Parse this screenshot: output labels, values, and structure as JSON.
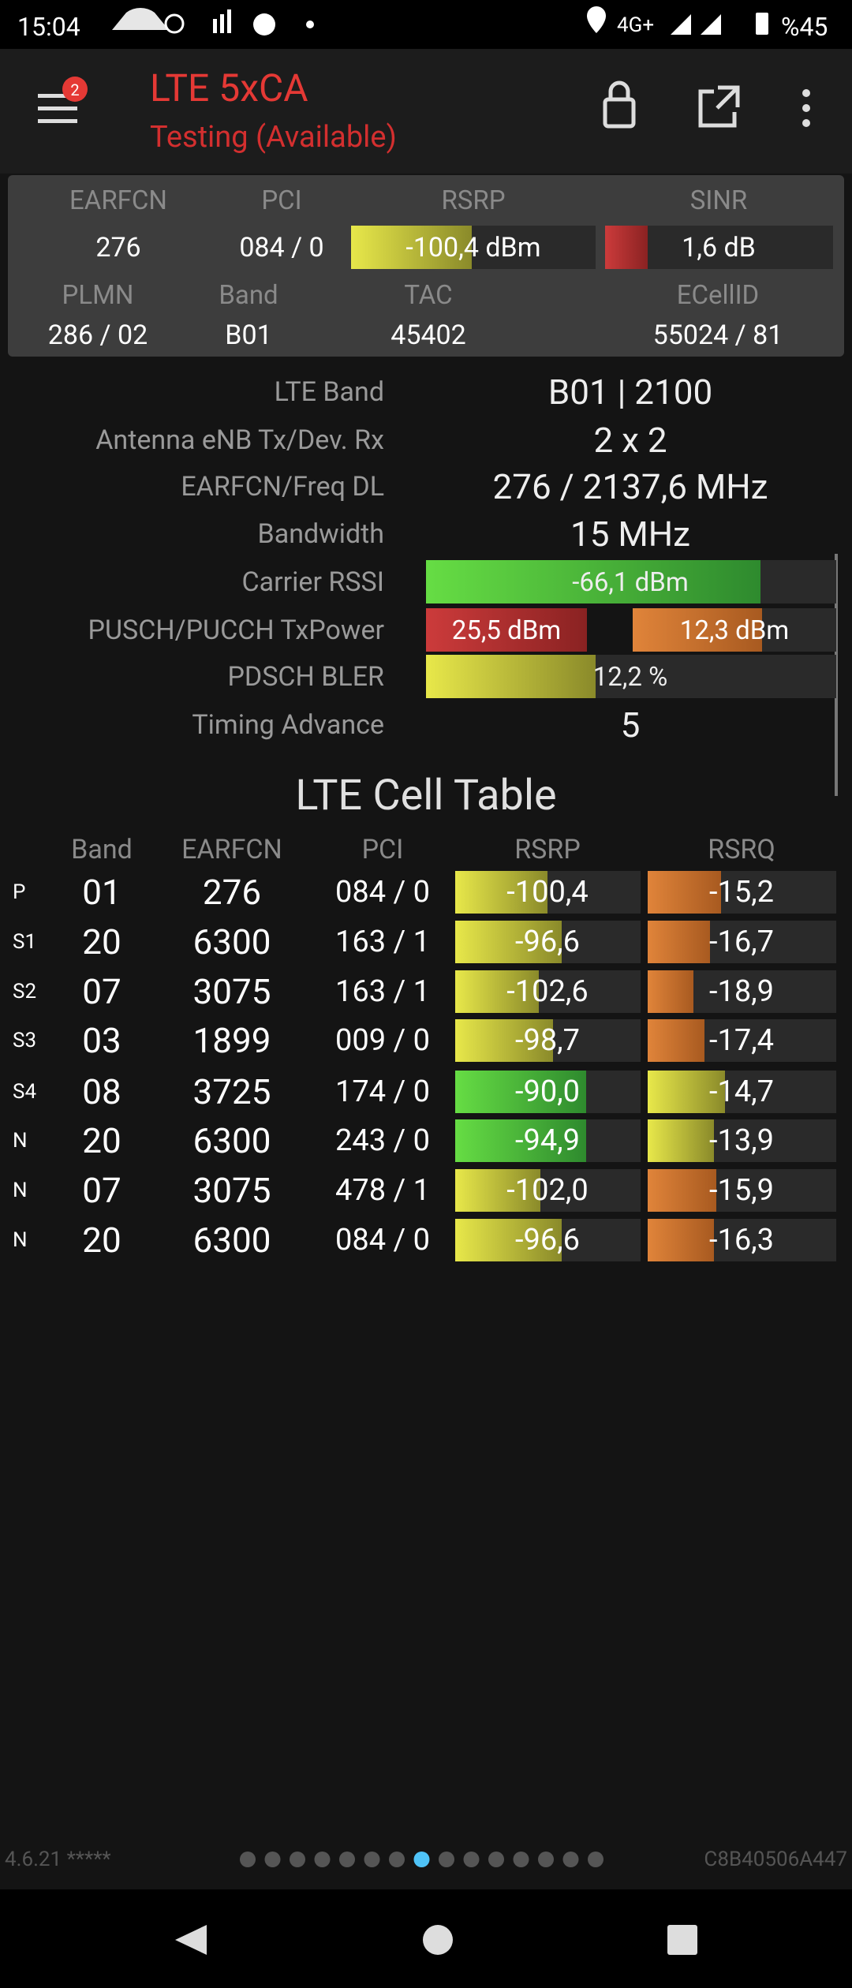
{
  "status_bar": {
    "time": "15:04",
    "network": "4G+",
    "battery": "%45"
  },
  "app_bar": {
    "title": "LTE 5xCA",
    "subtitle": "Testing (Available)",
    "badge": "2"
  },
  "summary": {
    "headers": [
      "EARFCN",
      "PCI",
      "RSRP",
      "SINR"
    ],
    "values": [
      "276",
      "084 / 0",
      "-100,4 dBm",
      "1,6 dB"
    ],
    "headers2": [
      "PLMN",
      "Band",
      "TAC",
      "ECellID"
    ],
    "values2": [
      "286 / 02",
      "B01",
      "45402",
      "55024 / 81"
    ]
  },
  "details": [
    {
      "label": "LTE Band",
      "values": [
        "B01 | 2100"
      ]
    },
    {
      "label": "Antenna eNB Tx/Dev. Rx",
      "values": [
        "2 x 2"
      ]
    },
    {
      "label": "EARFCN/Freq DL",
      "values": [
        "276 / 2137,6 MHz"
      ]
    },
    {
      "label": "Bandwidth",
      "values": [
        "15 MHz"
      ]
    },
    {
      "label": "Carrier RSSI",
      "values": [
        "-66,1 dBm"
      ]
    },
    {
      "label": "PUSCH/PUCCH TxPower",
      "values": [
        "25,5 dBm",
        "12,3 dBm"
      ]
    },
    {
      "label": "PDSCH BLER",
      "values": [
        "12,2 %"
      ]
    },
    {
      "label": "Timing Advance",
      "values": [
        "5"
      ]
    }
  ],
  "cell_table": {
    "title": "LTE Cell Table",
    "columns": [
      "Band",
      "EARFCN",
      "PCI",
      "RSRP",
      "RSRQ"
    ],
    "rows": [
      {
        "type": "P",
        "band": "01",
        "earfcn": "276",
        "pci": "084 / 0",
        "rsrp": "-100,4",
        "rsrq": "-15,2"
      },
      {
        "type": "S1",
        "band": "20",
        "earfcn": "6300",
        "pci": "163 / 1",
        "rsrp": "-96,6",
        "rsrq": "-16,7"
      },
      {
        "type": "S2",
        "band": "07",
        "earfcn": "3075",
        "pci": "163 / 1",
        "rsrp": "-102,6",
        "rsrq": "-18,9"
      },
      {
        "type": "S3",
        "band": "03",
        "earfcn": "1899",
        "pci": "009 / 0",
        "rsrp": "-98,7",
        "rsrq": "-17,4"
      },
      {
        "type": "S4",
        "band": "08",
        "earfcn": "3725",
        "pci": "174 / 0",
        "rsrp": "-90,0",
        "rsrq": "-14,7"
      },
      {
        "type": "N",
        "band": "20",
        "earfcn": "6300",
        "pci": "243 / 0",
        "rsrp": "-94,9",
        "rsrq": "-13,9"
      },
      {
        "type": "N",
        "band": "07",
        "earfcn": "3075",
        "pci": "478 / 1",
        "rsrp": "-102,0",
        "rsrq": "-15,9"
      },
      {
        "type": "N",
        "band": "20",
        "earfcn": "6300",
        "pci": "084 / 0",
        "rsrp": "-96,6",
        "rsrq": "-16,3"
      }
    ]
  },
  "footer": {
    "version": "4.6.21 *****",
    "device_id": "C8B40506A447"
  }
}
